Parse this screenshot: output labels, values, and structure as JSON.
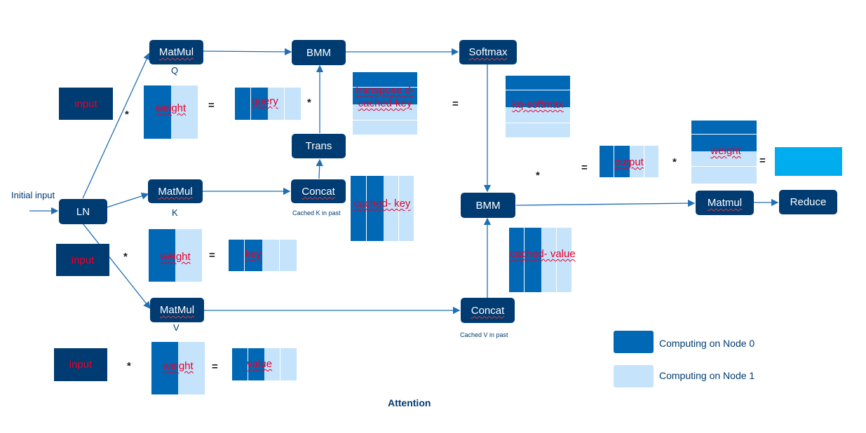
{
  "title": "Attention",
  "initial_input": "Initial input",
  "ops": {
    "ln": "LN",
    "matmul_q": "MatMul",
    "matmul_k": "MatMul",
    "matmul_v": "MatMul",
    "bmm_top": "BMM",
    "softmax": "Softmax",
    "trans": "Trans",
    "concat_k": "Concat",
    "bmm_mid": "BMM",
    "concat_v": "Concat",
    "matmul_out": "Matmul",
    "reduce": "Reduce"
  },
  "captions": {
    "q": "Q",
    "k": "K",
    "v": "V",
    "cached_k": "Cached K in past",
    "cached_v": "Cached V in past"
  },
  "matrices": {
    "input_q": "input",
    "weight_q": "weight",
    "query": "query",
    "transposed_cached_key": "transpose d-cached-key",
    "kq_softmax": "kq-softmax",
    "cached_key": "cached- key",
    "input_k": "input",
    "weight_k": "weight",
    "key": "key",
    "cached_value": "cached- value",
    "input_v": "input",
    "weight_v": "weight",
    "value": "value",
    "output": "output",
    "weight_o": "weight"
  },
  "symbols": {
    "multiply": "*",
    "equals": "="
  },
  "legend": [
    {
      "label": "Computing on Node 0",
      "color": "#0068b5"
    },
    {
      "label": "Computing on Node 1",
      "color": "#c5e3fb"
    }
  ],
  "colors": {
    "op": "#003b71",
    "node0": "#0068b5",
    "node1": "#c5e3fb",
    "result": "#00aeef",
    "arrow": "#1f6fb5"
  }
}
